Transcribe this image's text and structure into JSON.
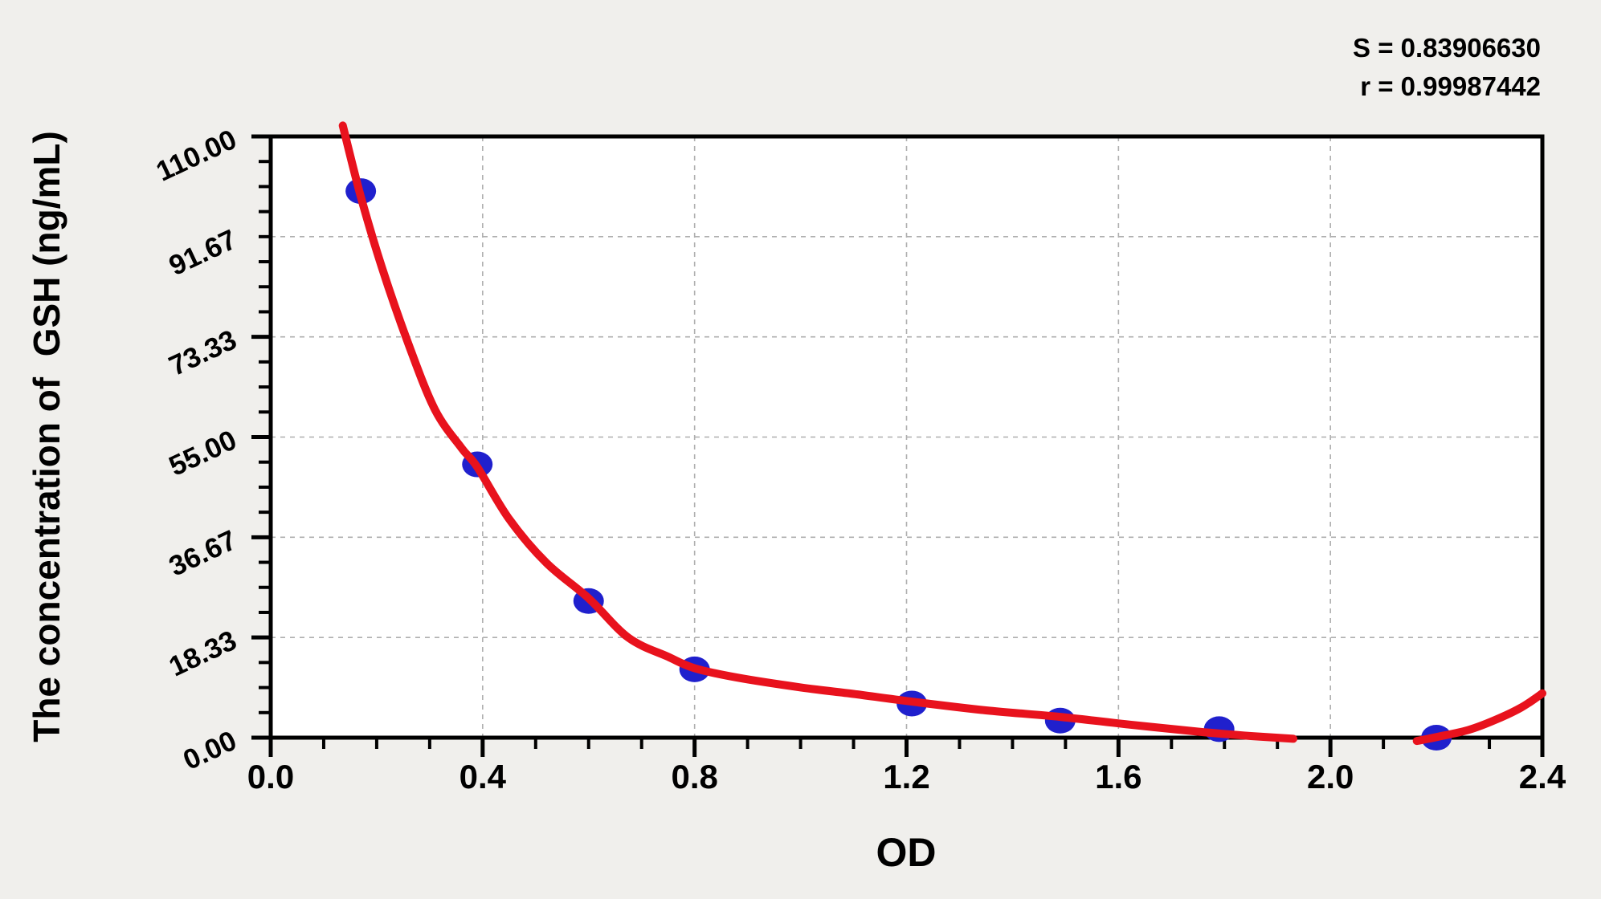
{
  "stats": {
    "s_line": "S = 0.83906630",
    "r_line": "r = 0.99987442"
  },
  "colors": {
    "background": "#f0efec",
    "plot_background": "#ffffff",
    "axis": "#000000",
    "grid": "#aeaeae",
    "curve_red": "#e8121d",
    "point_blue": "#2020cd"
  },
  "chart_data": {
    "type": "scatter",
    "title": "",
    "xlabel": "OD",
    "ylabel": "The concentration of  GSH (ng/mL)",
    "grid": true,
    "legend": "none",
    "x_axis": {
      "min": 0,
      "max": 2.4,
      "major_ticks": [
        0,
        0.4,
        0.8,
        1.2,
        1.6,
        2.0,
        2.4
      ],
      "tick_labels": [
        "0.0",
        "0.4",
        "0.8",
        "1.2",
        "1.6",
        "2.0",
        "2.4"
      ],
      "minor_step": 0.1
    },
    "y_axis": {
      "min": 0,
      "max": 110,
      "major_ticks": [
        0,
        18.333,
        36.667,
        55,
        73.333,
        91.667,
        110
      ],
      "tick_labels": [
        "0.00",
        "18.33",
        "36.67",
        "55.00",
        "73.33",
        "91.67",
        "110.00"
      ],
      "minor_step": 4.5833
    },
    "series": [
      {
        "name": "standard-points",
        "type": "scatter",
        "color": "#2020cd",
        "points": [
          [
            0.17,
            100
          ],
          [
            0.39,
            50
          ],
          [
            0.6,
            25
          ],
          [
            0.8,
            12.5
          ],
          [
            1.21,
            6.25
          ],
          [
            1.49,
            3.12
          ],
          [
            1.79,
            1.56
          ],
          [
            2.2,
            0
          ]
        ]
      },
      {
        "name": "fitted-curve",
        "type": "line",
        "color": "#e8121d",
        "segments": [
          [
            [
              0.136,
              112
            ],
            [
              0.17,
              99
            ],
            [
              0.21,
              86
            ],
            [
              0.26,
              72
            ],
            [
              0.31,
              60
            ],
            [
              0.36,
              53
            ],
            [
              0.39,
              49.5
            ],
            [
              0.45,
              40
            ],
            [
              0.52,
              32
            ],
            [
              0.6,
              25.5
            ],
            [
              0.675,
              18.3
            ],
            [
              0.75,
              14.8
            ],
            [
              0.8,
              12.7
            ],
            [
              0.88,
              11.0
            ],
            [
              1.0,
              9.2
            ],
            [
              1.1,
              8.0
            ],
            [
              1.21,
              6.6
            ],
            [
              1.35,
              5.0
            ],
            [
              1.49,
              3.8
            ],
            [
              1.62,
              2.4
            ],
            [
              1.75,
              1.1
            ],
            [
              1.85,
              0.3
            ],
            [
              1.93,
              -0.2
            ]
          ],
          [
            [
              2.163,
              -0.6
            ],
            [
              2.2,
              0.1
            ],
            [
              2.26,
              1.4
            ],
            [
              2.31,
              3.2
            ],
            [
              2.36,
              5.5
            ],
            [
              2.4,
              8.1
            ]
          ]
        ]
      }
    ]
  }
}
